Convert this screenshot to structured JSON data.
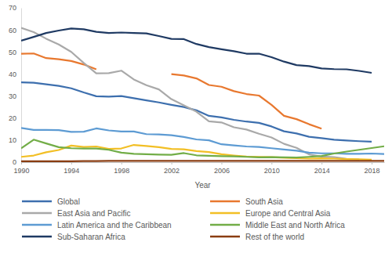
{
  "chart_data": {
    "type": "line",
    "x_label": "Year",
    "x": [
      1990,
      1991,
      1992,
      1993,
      1994,
      1995,
      1996,
      1997,
      1998,
      1999,
      2000,
      2001,
      2002,
      2003,
      2004,
      2005,
      2006,
      2007,
      2008,
      2009,
      2010,
      2011,
      2012,
      2013,
      2014,
      2015,
      2016,
      2017,
      2018,
      2019
    ],
    "xlim": [
      1990,
      2019
    ],
    "xticks": [
      1990,
      1994,
      1998,
      2002,
      2006,
      2010,
      2014,
      2018
    ],
    "ylim": [
      0,
      70
    ],
    "yticks": [
      0,
      10,
      20,
      30,
      40,
      50,
      60,
      70
    ],
    "grid": false,
    "legend": "bottom",
    "series": [
      {
        "name": "Global",
        "color": "#3d6fae",
        "values": [
          36.2,
          36.0,
          35.3,
          34.6,
          33.5,
          31.6,
          29.9,
          29.7,
          30.0,
          29.0,
          28.0,
          27.1,
          26.0,
          25.0,
          23.5,
          21.0,
          20.3,
          19.2,
          18.4,
          17.8,
          16.2,
          14.0,
          13.0,
          11.5,
          10.9,
          10.2,
          9.8,
          9.5,
          9.3,
          null
        ]
      },
      {
        "name": "South Asia",
        "color": "#e8782f",
        "values": [
          49.2,
          49.3,
          47.2,
          46.7,
          45.9,
          44.3,
          42.1,
          null,
          null,
          null,
          null,
          null,
          39.9,
          39.3,
          38.0,
          35.0,
          34.2,
          32.2,
          30.9,
          30.2,
          26.0,
          21.0,
          19.5,
          17.2,
          15.2,
          null,
          null,
          null,
          null,
          null
        ]
      },
      {
        "name": "East Asia and Pacific",
        "color": "#a9a9a9",
        "values": [
          60.9,
          59.0,
          56.0,
          53.4,
          50.0,
          45.0,
          40.3,
          40.4,
          41.5,
          37.5,
          34.9,
          33.0,
          28.6,
          25.8,
          22.9,
          18.5,
          18.0,
          15.8,
          14.8,
          12.9,
          11.2,
          8.3,
          6.5,
          3.5,
          2.5,
          2.3,
          1.5,
          1.2,
          null,
          null
        ]
      },
      {
        "name": "Europe and Central Asia",
        "color": "#f2bf25",
        "values": [
          2.4,
          3.0,
          4.5,
          5.5,
          7.5,
          6.9,
          7.1,
          6.0,
          6.2,
          7.8,
          7.3,
          6.8,
          6.0,
          5.8,
          5.0,
          4.6,
          3.6,
          3.0,
          2.5,
          2.4,
          2.3,
          2.0,
          1.8,
          1.6,
          1.7,
          1.6,
          1.4,
          1.3,
          1.1,
          null
        ]
      },
      {
        "name": "Latin America and the Caribbean",
        "color": "#5d9bd3",
        "values": [
          15.5,
          14.6,
          14.6,
          14.5,
          13.7,
          13.8,
          15.3,
          14.4,
          13.9,
          13.9,
          12.7,
          12.6,
          12.2,
          11.4,
          10.3,
          9.9,
          8.1,
          7.6,
          7.1,
          6.9,
          6.3,
          5.7,
          5.2,
          4.3,
          4.0,
          4.0,
          3.8,
          3.8,
          3.9,
          3.7
        ]
      },
      {
        "name": "Middle East and North Africa",
        "color": "#72ad47",
        "values": [
          6.3,
          10.2,
          8.5,
          6.8,
          6.3,
          6.2,
          6.2,
          5.6,
          4.3,
          3.8,
          3.6,
          3.4,
          3.3,
          4.1,
          3.1,
          2.9,
          2.7,
          2.6,
          2.4,
          2.2,
          2.3,
          2.2,
          2.1,
          2.4,
          2.8,
          3.9,
          4.8,
          5.6,
          6.4,
          7.2
        ]
      },
      {
        "name": "Sub-Saharan Africa",
        "color": "#1f3a63",
        "values": [
          55.1,
          56.8,
          58.6,
          59.7,
          60.6,
          60.3,
          59.1,
          58.6,
          58.8,
          58.6,
          58.4,
          57.2,
          55.9,
          55.8,
          53.6,
          52.2,
          51.2,
          50.3,
          49.2,
          49.2,
          47.6,
          45.6,
          44.0,
          43.6,
          42.5,
          42.2,
          42.1,
          41.4,
          40.5,
          null
        ]
      },
      {
        "name": "Rest of the world",
        "color": "#8a3d12",
        "values": [
          0.4,
          0.4,
          0.4,
          0.4,
          0.4,
          0.5,
          0.5,
          0.6,
          0.6,
          0.6,
          0.6,
          0.6,
          0.6,
          0.6,
          0.6,
          0.6,
          0.6,
          0.6,
          0.6,
          0.6,
          0.6,
          0.6,
          0.6,
          0.6,
          0.6,
          0.6,
          0.6,
          0.6,
          0.6,
          0.6
        ]
      }
    ]
  }
}
